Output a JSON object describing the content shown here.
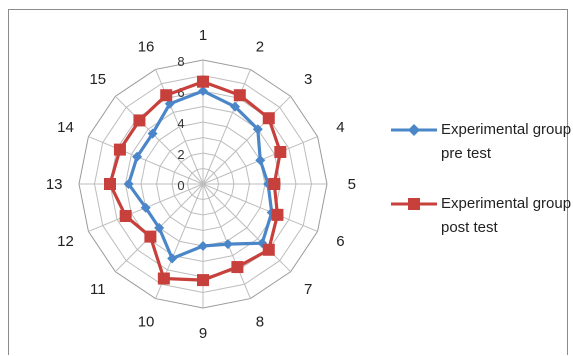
{
  "chart_data": {
    "type": "radar",
    "categories": [
      "1",
      "2",
      "3",
      "4",
      "5",
      "6",
      "7",
      "8",
      "9",
      "10",
      "11",
      "12",
      "13",
      "14",
      "15",
      "16"
    ],
    "rlim": [
      0,
      8
    ],
    "ticks": [
      "0",
      "2",
      "4",
      "6",
      "8"
    ],
    "grid": true,
    "legend_position": "right",
    "series": [
      {
        "name": "Experimental group pre test",
        "color": "#4a86c8",
        "marker": "diamond",
        "values": [
          6.0,
          5.4,
          5.0,
          4.0,
          4.2,
          4.8,
          5.4,
          4.2,
          4.0,
          5.2,
          4.0,
          4.0,
          4.8,
          4.6,
          4.6,
          5.6
        ]
      },
      {
        "name": "Experimental group post test",
        "color": "#c8403c",
        "marker": "square",
        "values": [
          6.6,
          6.2,
          6.0,
          5.4,
          4.6,
          5.2,
          6.0,
          5.8,
          6.2,
          6.6,
          4.8,
          5.4,
          6.0,
          5.8,
          5.8,
          6.2
        ]
      }
    ]
  }
}
